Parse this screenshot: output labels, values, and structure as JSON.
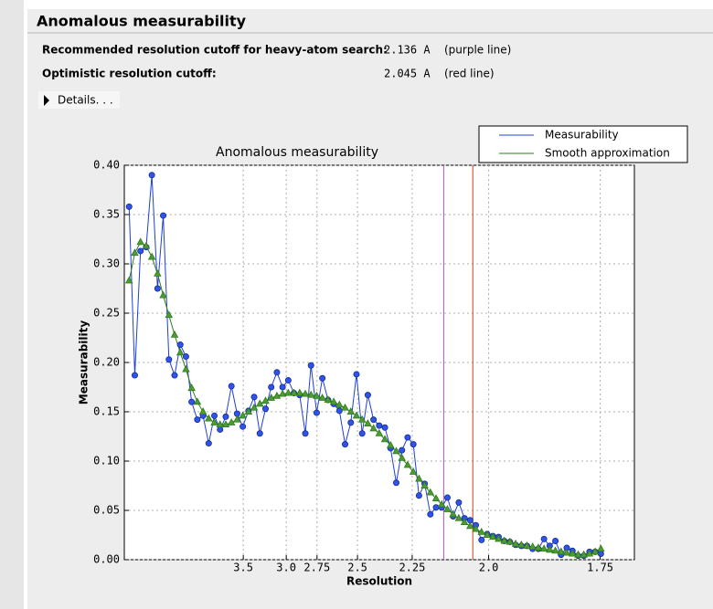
{
  "header": {
    "title": "Anomalous measurability"
  },
  "summary": {
    "rows": [
      {
        "label": "Recommended resolution cutoff for heavy-atom search:",
        "value": 2.136,
        "value_label": "2.136 A",
        "note": "(purple line)",
        "line_color": "#c050c8"
      },
      {
        "label": "Optimistic resolution cutoff:",
        "value": 2.045,
        "value_label": "2.045 A",
        "note": "(red line)",
        "line_color": "#c8401a"
      }
    ]
  },
  "details": {
    "label": "Details. . ."
  },
  "chart_data": {
    "type": "line",
    "title": "Anomalous measurability",
    "x_label": "Resolution",
    "y_label": "Measurability",
    "x": [
      0.0033,
      0.0072,
      0.0111,
      0.015,
      0.0189,
      0.0228,
      0.0267,
      0.0306,
      0.0345,
      0.0384,
      0.0423,
      0.0462,
      0.0501,
      0.054,
      0.0579,
      0.0618,
      0.0657,
      0.0696,
      0.0735,
      0.0774,
      0.0813,
      0.0852,
      0.0891,
      0.093,
      0.0969,
      0.1008,
      0.1047,
      0.1086,
      0.1125,
      0.1164,
      0.1203,
      0.1242,
      0.1281,
      0.132,
      0.1359,
      0.1398,
      0.1437,
      0.1476,
      0.1515,
      0.1554,
      0.1593,
      0.1632,
      0.1671,
      0.171,
      0.1749,
      0.1788,
      0.1827,
      0.1866,
      0.1905,
      0.1944,
      0.1983,
      0.2022,
      0.2061,
      0.21,
      0.2139,
      0.2178,
      0.2217,
      0.2256,
      0.2295,
      0.2334,
      0.2373,
      0.2412,
      0.2451,
      0.249,
      0.2529,
      0.2568,
      0.2607,
      0.2646,
      0.2685,
      0.2724,
      0.2763,
      0.2802,
      0.2841,
      0.288,
      0.2919,
      0.2958,
      0.2997,
      0.3036,
      0.3075,
      0.3114,
      0.3153,
      0.3192,
      0.3231,
      0.327
    ],
    "series": [
      {
        "name": "Measurability",
        "color": "#1f3fd6",
        "marker": "circle",
        "values": [
          0.358,
          0.187,
          0.313,
          0.317,
          0.39,
          0.275,
          0.349,
          0.203,
          0.187,
          0.218,
          0.206,
          0.16,
          0.142,
          0.146,
          0.118,
          0.146,
          0.132,
          0.145,
          0.176,
          0.148,
          0.135,
          0.151,
          0.165,
          0.128,
          0.153,
          0.175,
          0.19,
          0.175,
          0.182,
          0.169,
          0.167,
          0.128,
          0.197,
          0.149,
          0.184,
          0.162,
          0.158,
          0.151,
          0.117,
          0.139,
          0.188,
          0.128,
          0.167,
          0.142,
          0.136,
          0.134,
          0.113,
          0.078,
          0.111,
          0.124,
          0.117,
          0.065,
          0.077,
          0.046,
          0.053,
          0.053,
          0.063,
          0.044,
          0.058,
          0.042,
          0.04,
          0.035,
          0.02,
          0.026,
          0.024,
          0.023,
          0.019,
          0.018,
          0.015,
          0.014,
          0.014,
          0.011,
          0.011,
          0.021,
          0.014,
          0.019,
          0.005,
          0.012,
          0.009,
          0.004,
          0.004,
          0.008,
          0.008,
          0.006
        ]
      },
      {
        "name": "Smooth approximation",
        "color": "#2e7d1a",
        "marker": "triangle",
        "values": [
          0.283,
          0.311,
          0.322,
          0.318,
          0.307,
          0.29,
          0.268,
          0.248,
          0.228,
          0.21,
          0.193,
          0.174,
          0.16,
          0.15,
          0.143,
          0.139,
          0.137,
          0.137,
          0.139,
          0.142,
          0.146,
          0.15,
          0.154,
          0.158,
          0.161,
          0.164,
          0.166,
          0.168,
          0.169,
          0.169,
          0.169,
          0.168,
          0.167,
          0.166,
          0.164,
          0.162,
          0.16,
          0.157,
          0.154,
          0.15,
          0.146,
          0.142,
          0.138,
          0.133,
          0.128,
          0.122,
          0.116,
          0.11,
          0.103,
          0.096,
          0.089,
          0.082,
          0.075,
          0.068,
          0.062,
          0.056,
          0.051,
          0.046,
          0.042,
          0.038,
          0.034,
          0.031,
          0.028,
          0.025,
          0.023,
          0.021,
          0.019,
          0.018,
          0.016,
          0.015,
          0.014,
          0.013,
          0.012,
          0.011,
          0.01,
          0.009,
          0.008,
          0.007,
          0.006,
          0.005,
          0.005,
          0.006,
          0.008,
          0.011
        ]
      }
    ],
    "xlim": [
      0,
      0.35
    ],
    "ylim": [
      0,
      0.4
    ],
    "xticks": [
      {
        "value": 0.08163,
        "label": "3.5"
      },
      {
        "value": 0.11111,
        "label": "3.0"
      },
      {
        "value": 0.13223,
        "label": "2.75"
      },
      {
        "value": 0.16,
        "label": "2.5"
      },
      {
        "value": 0.19753,
        "label": "2.25"
      },
      {
        "value": 0.25,
        "label": "2.0"
      },
      {
        "value": 0.32653,
        "label": "1.75"
      }
    ],
    "yticks": [
      {
        "value": 0,
        "label": "0.00"
      },
      0.05,
      {
        "value": 0.1,
        "label": "0.10"
      },
      0.15,
      {
        "value": 0.2,
        "label": "0.20"
      },
      0.25,
      {
        "value": 0.3,
        "label": "0.30"
      },
      0.35,
      {
        "value": 0.4,
        "label": "0.40"
      }
    ],
    "grid": true,
    "legend": "top-right"
  }
}
